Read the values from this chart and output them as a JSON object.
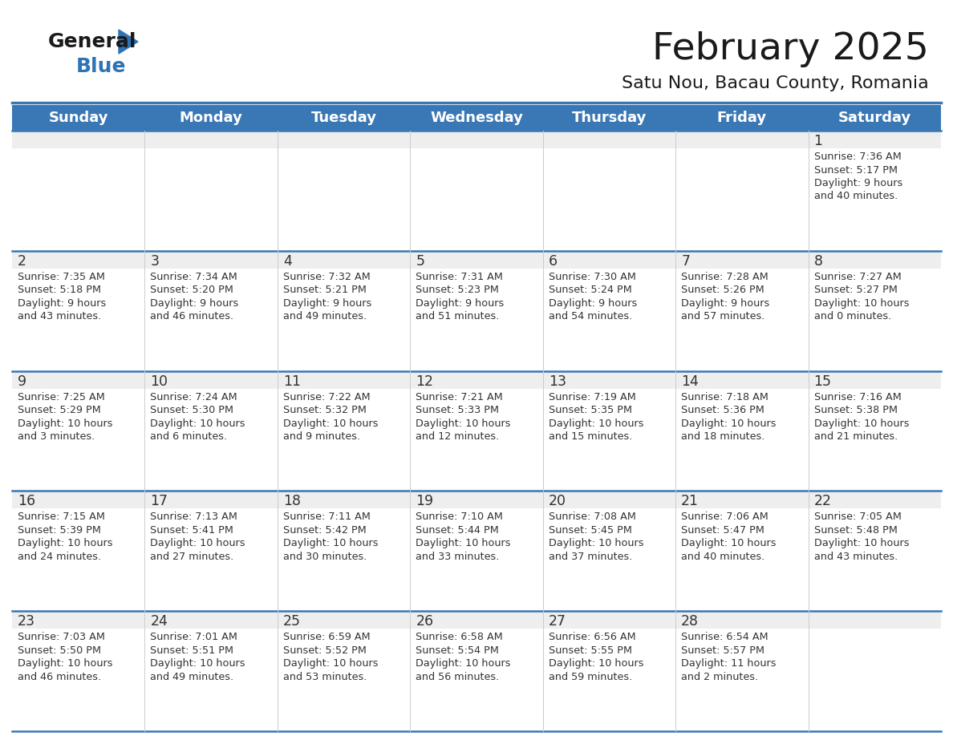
{
  "title": "February 2025",
  "subtitle": "Satu Nou, Bacau County, Romania",
  "header_bg_color": "#3A78B5",
  "header_text_color": "#FFFFFF",
  "day_names": [
    "Sunday",
    "Monday",
    "Tuesday",
    "Wednesday",
    "Thursday",
    "Friday",
    "Saturday"
  ],
  "row_bg_number": "#EEEEEE",
  "row_bg_text": "#FFFFFF",
  "cell_border_color": "#3A78B5",
  "text_color": "#333333",
  "day_number_color": "#333333",
  "title_color": "#1a1a1a",
  "subtitle_color": "#1a1a1a",
  "logo_color": "#2E74B5",
  "calendar_data": [
    [
      {
        "day": null,
        "sunrise": null,
        "sunset": null,
        "daylight": null
      },
      {
        "day": null,
        "sunrise": null,
        "sunset": null,
        "daylight": null
      },
      {
        "day": null,
        "sunrise": null,
        "sunset": null,
        "daylight": null
      },
      {
        "day": null,
        "sunrise": null,
        "sunset": null,
        "daylight": null
      },
      {
        "day": null,
        "sunrise": null,
        "sunset": null,
        "daylight": null
      },
      {
        "day": null,
        "sunrise": null,
        "sunset": null,
        "daylight": null
      },
      {
        "day": 1,
        "sunrise": "7:36 AM",
        "sunset": "5:17 PM",
        "daylight": "9 hours and 40 minutes."
      }
    ],
    [
      {
        "day": 2,
        "sunrise": "7:35 AM",
        "sunset": "5:18 PM",
        "daylight": "9 hours and 43 minutes."
      },
      {
        "day": 3,
        "sunrise": "7:34 AM",
        "sunset": "5:20 PM",
        "daylight": "9 hours and 46 minutes."
      },
      {
        "day": 4,
        "sunrise": "7:32 AM",
        "sunset": "5:21 PM",
        "daylight": "9 hours and 49 minutes."
      },
      {
        "day": 5,
        "sunrise": "7:31 AM",
        "sunset": "5:23 PM",
        "daylight": "9 hours and 51 minutes."
      },
      {
        "day": 6,
        "sunrise": "7:30 AM",
        "sunset": "5:24 PM",
        "daylight": "9 hours and 54 minutes."
      },
      {
        "day": 7,
        "sunrise": "7:28 AM",
        "sunset": "5:26 PM",
        "daylight": "9 hours and 57 minutes."
      },
      {
        "day": 8,
        "sunrise": "7:27 AM",
        "sunset": "5:27 PM",
        "daylight": "10 hours and 0 minutes."
      }
    ],
    [
      {
        "day": 9,
        "sunrise": "7:25 AM",
        "sunset": "5:29 PM",
        "daylight": "10 hours and 3 minutes."
      },
      {
        "day": 10,
        "sunrise": "7:24 AM",
        "sunset": "5:30 PM",
        "daylight": "10 hours and 6 minutes."
      },
      {
        "day": 11,
        "sunrise": "7:22 AM",
        "sunset": "5:32 PM",
        "daylight": "10 hours and 9 minutes."
      },
      {
        "day": 12,
        "sunrise": "7:21 AM",
        "sunset": "5:33 PM",
        "daylight": "10 hours and 12 minutes."
      },
      {
        "day": 13,
        "sunrise": "7:19 AM",
        "sunset": "5:35 PM",
        "daylight": "10 hours and 15 minutes."
      },
      {
        "day": 14,
        "sunrise": "7:18 AM",
        "sunset": "5:36 PM",
        "daylight": "10 hours and 18 minutes."
      },
      {
        "day": 15,
        "sunrise": "7:16 AM",
        "sunset": "5:38 PM",
        "daylight": "10 hours and 21 minutes."
      }
    ],
    [
      {
        "day": 16,
        "sunrise": "7:15 AM",
        "sunset": "5:39 PM",
        "daylight": "10 hours and 24 minutes."
      },
      {
        "day": 17,
        "sunrise": "7:13 AM",
        "sunset": "5:41 PM",
        "daylight": "10 hours and 27 minutes."
      },
      {
        "day": 18,
        "sunrise": "7:11 AM",
        "sunset": "5:42 PM",
        "daylight": "10 hours and 30 minutes."
      },
      {
        "day": 19,
        "sunrise": "7:10 AM",
        "sunset": "5:44 PM",
        "daylight": "10 hours and 33 minutes."
      },
      {
        "day": 20,
        "sunrise": "7:08 AM",
        "sunset": "5:45 PM",
        "daylight": "10 hours and 37 minutes."
      },
      {
        "day": 21,
        "sunrise": "7:06 AM",
        "sunset": "5:47 PM",
        "daylight": "10 hours and 40 minutes."
      },
      {
        "day": 22,
        "sunrise": "7:05 AM",
        "sunset": "5:48 PM",
        "daylight": "10 hours and 43 minutes."
      }
    ],
    [
      {
        "day": 23,
        "sunrise": "7:03 AM",
        "sunset": "5:50 PM",
        "daylight": "10 hours and 46 minutes."
      },
      {
        "day": 24,
        "sunrise": "7:01 AM",
        "sunset": "5:51 PM",
        "daylight": "10 hours and 49 minutes."
      },
      {
        "day": 25,
        "sunrise": "6:59 AM",
        "sunset": "5:52 PM",
        "daylight": "10 hours and 53 minutes."
      },
      {
        "day": 26,
        "sunrise": "6:58 AM",
        "sunset": "5:54 PM",
        "daylight": "10 hours and 56 minutes."
      },
      {
        "day": 27,
        "sunrise": "6:56 AM",
        "sunset": "5:55 PM",
        "daylight": "10 hours and 59 minutes."
      },
      {
        "day": 28,
        "sunrise": "6:54 AM",
        "sunset": "5:57 PM",
        "daylight": "11 hours and 2 minutes."
      },
      {
        "day": null,
        "sunrise": null,
        "sunset": null,
        "daylight": null
      }
    ]
  ]
}
